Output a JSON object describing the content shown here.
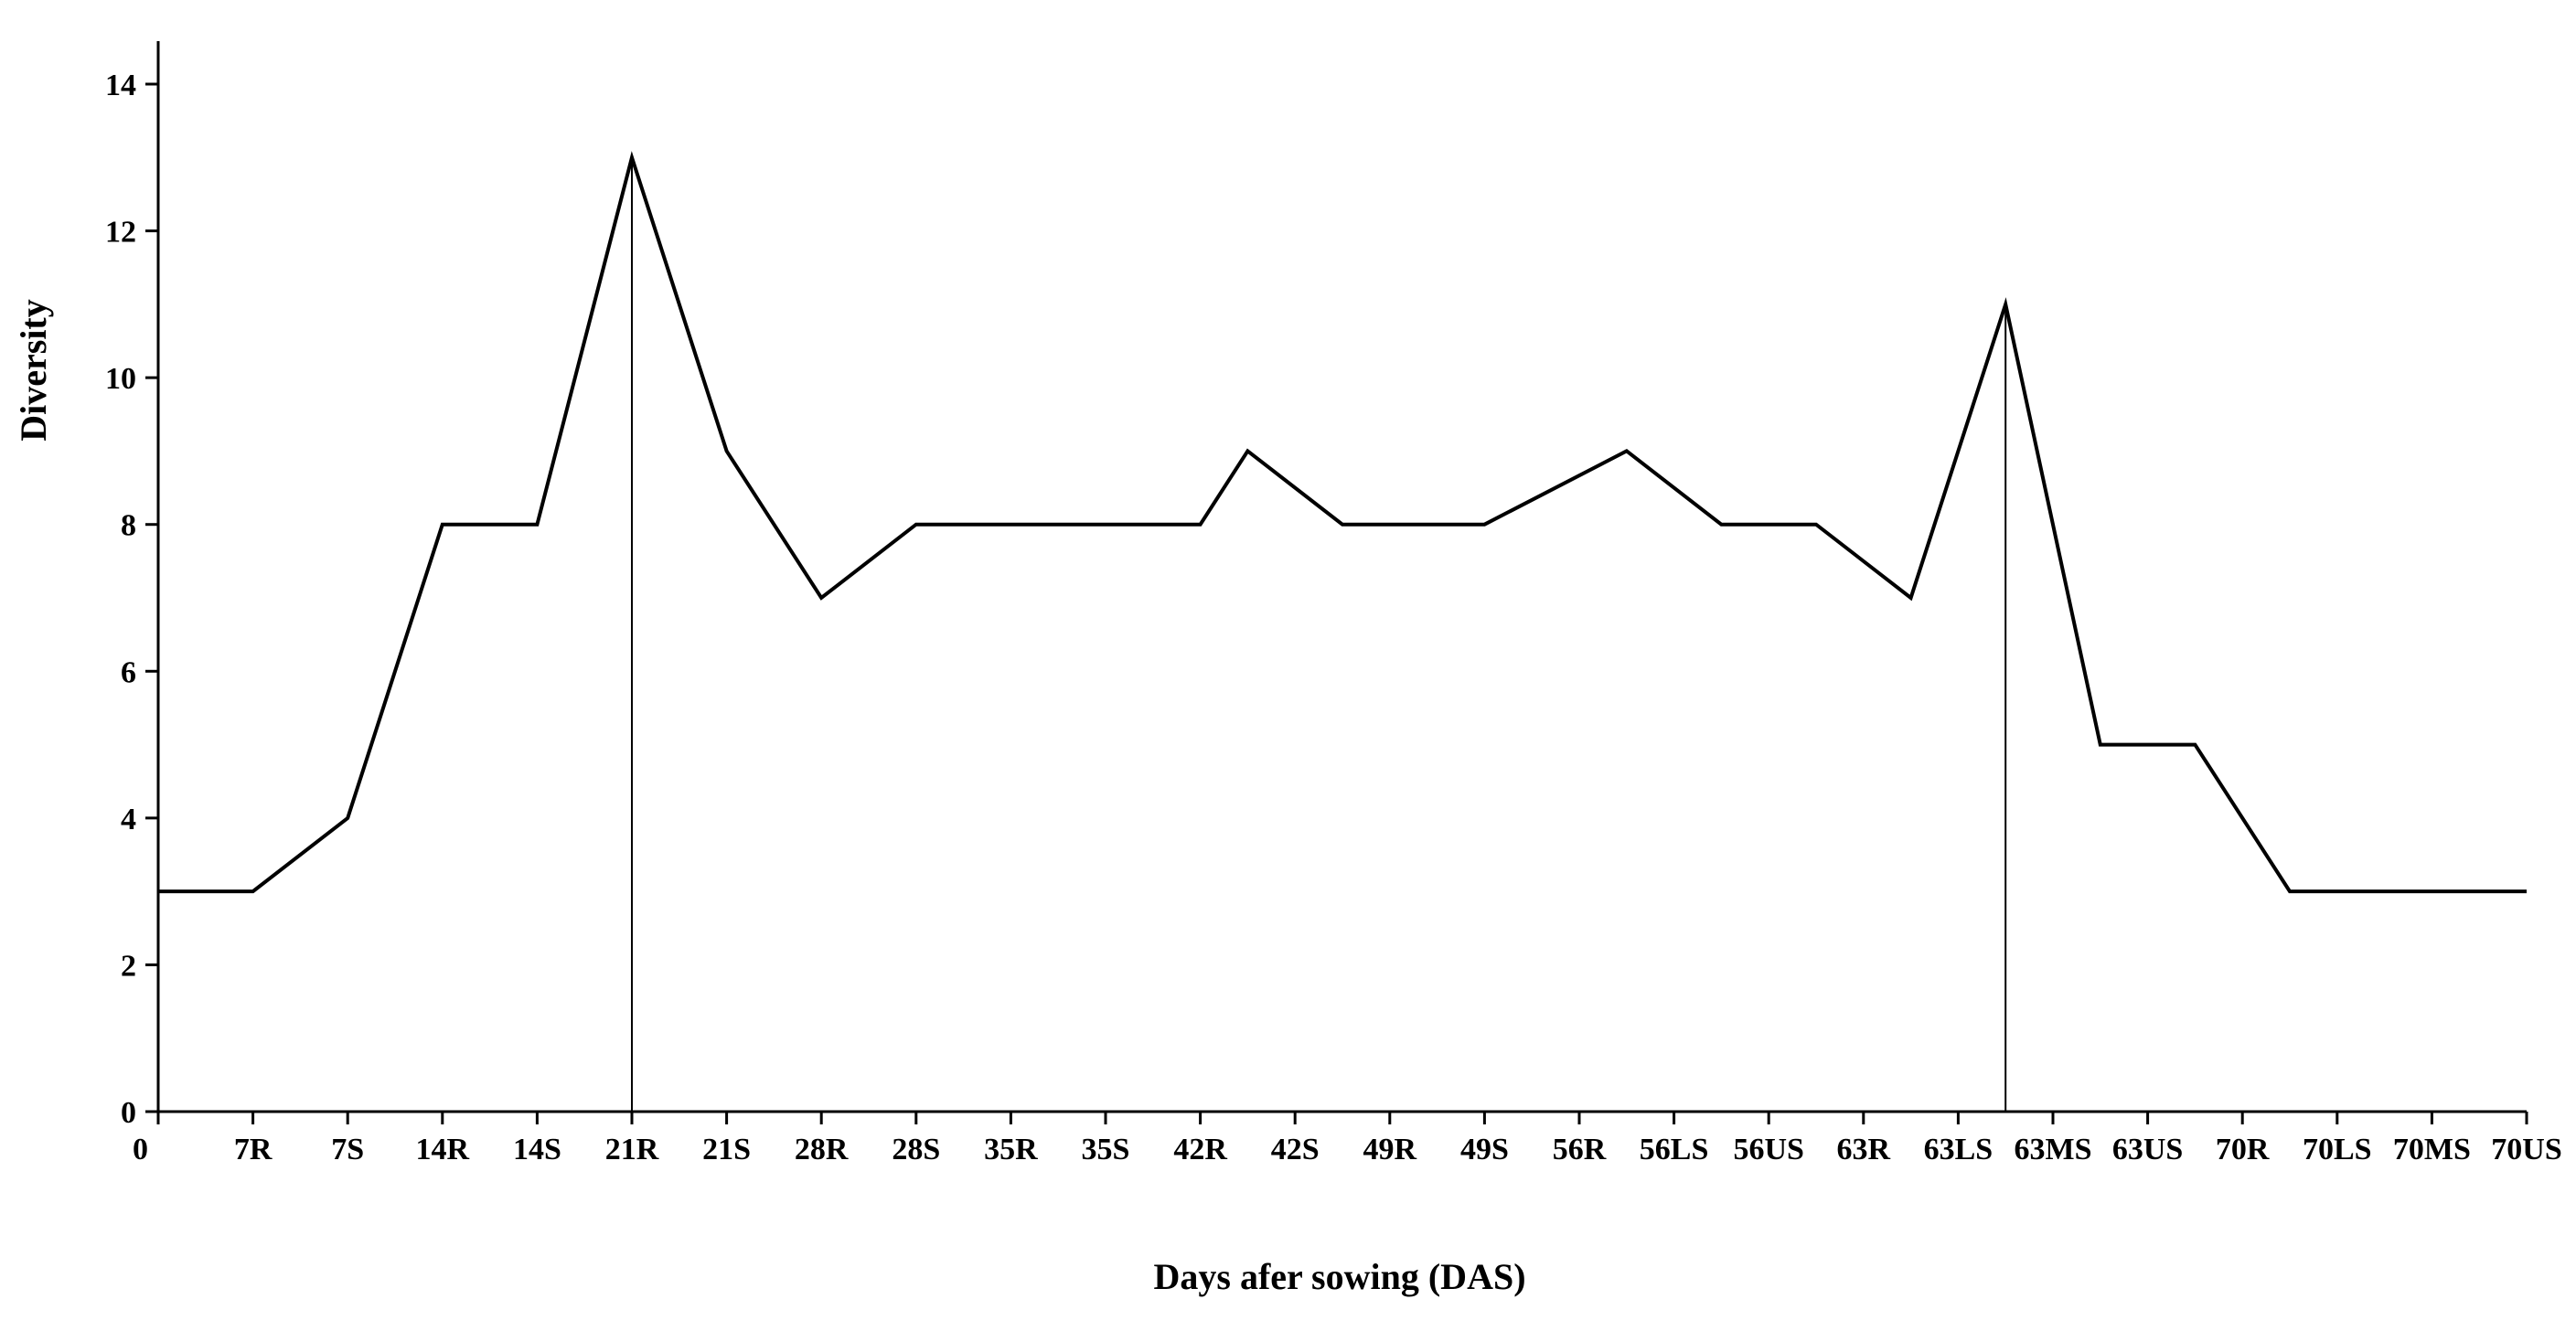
{
  "chart_data": {
    "type": "line",
    "title": "",
    "xlabel": "Days afer sowing (DAS)",
    "ylabel": "Diversity",
    "ylim": [
      0,
      14
    ],
    "yticks": [
      0,
      2,
      4,
      6,
      8,
      10,
      12,
      14
    ],
    "grid": false,
    "legend": "none",
    "line_color": "#000000",
    "x_tick_labels": [
      "0",
      "7R",
      "7S",
      "14R",
      "14S",
      "21R",
      "21S",
      "28R",
      "28S",
      "35R",
      "35S",
      "42R",
      "42S",
      "49R",
      "49S",
      "56R",
      "56LS",
      "56US",
      "63R",
      "63LS",
      "63MS",
      "63US",
      "70R",
      "70LS",
      "70MS",
      "70US"
    ],
    "x_tick_positions": [
      0,
      1,
      2,
      3,
      4,
      5,
      6,
      7,
      8,
      9,
      10,
      11,
      12,
      13,
      14,
      15,
      16,
      17,
      18,
      19,
      20,
      21,
      22,
      23,
      24,
      25
    ],
    "points": [
      {
        "x": 0,
        "y": 3
      },
      {
        "x": 1,
        "y": 3
      },
      {
        "x": 2,
        "y": 4
      },
      {
        "x": 3,
        "y": 8
      },
      {
        "x": 4,
        "y": 8
      },
      {
        "x": 5,
        "y": 13
      },
      {
        "x": 6,
        "y": 9
      },
      {
        "x": 7,
        "y": 7
      },
      {
        "x": 8,
        "y": 8
      },
      {
        "x": 9,
        "y": 8
      },
      {
        "x": 10,
        "y": 8
      },
      {
        "x": 11,
        "y": 8
      },
      {
        "x": 11.5,
        "y": 9
      },
      {
        "x": 12.5,
        "y": 8
      },
      {
        "x": 13,
        "y": 8
      },
      {
        "x": 14,
        "y": 8
      },
      {
        "x": 15.5,
        "y": 9
      },
      {
        "x": 16.5,
        "y": 8
      },
      {
        "x": 17.5,
        "y": 8
      },
      {
        "x": 18.5,
        "y": 7
      },
      {
        "x": 19.5,
        "y": 11
      },
      {
        "x": 20.5,
        "y": 5
      },
      {
        "x": 21.5,
        "y": 5
      },
      {
        "x": 22.5,
        "y": 3
      },
      {
        "x": 23.5,
        "y": 3
      },
      {
        "x": 25,
        "y": 3
      }
    ],
    "reference_lines_x": [
      5,
      19.5
    ]
  }
}
